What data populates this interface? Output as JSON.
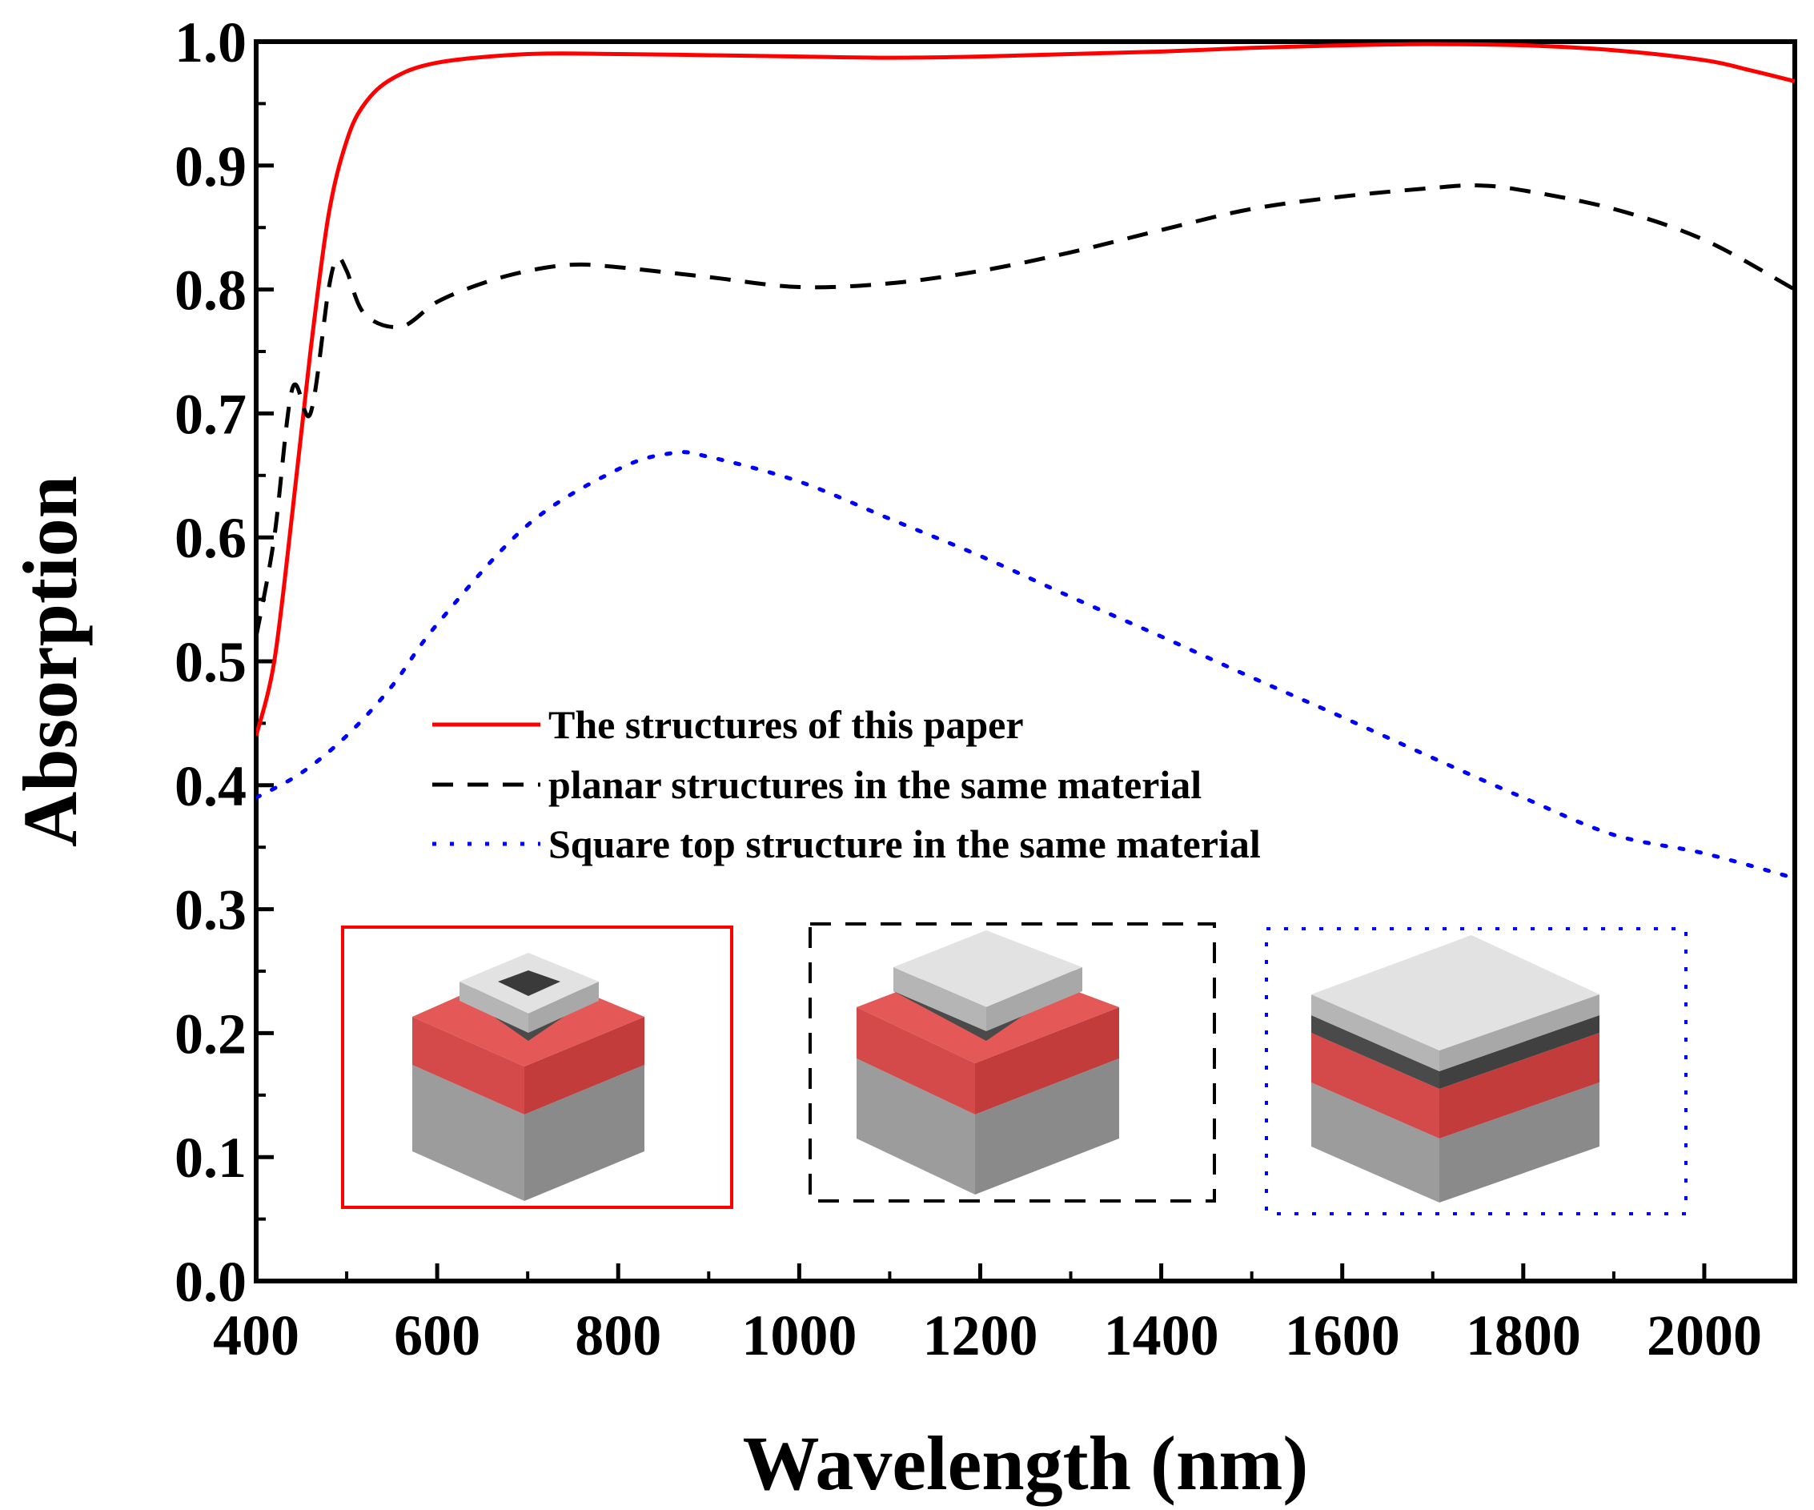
{
  "chart_data": {
    "type": "line",
    "title": "",
    "xlabel": "Wavelength (nm)",
    "ylabel": "Absorption",
    "xlim": [
      400,
      2100
    ],
    "ylim": [
      0.0,
      1.0
    ],
    "xticks": [
      400,
      600,
      800,
      1000,
      1200,
      1400,
      1600,
      1800,
      2000
    ],
    "xtick_labels": [
      "400",
      "600",
      "800",
      "1000",
      "1200",
      "1400",
      "1600",
      "1800",
      "2000"
    ],
    "yticks": [
      0.0,
      0.1,
      0.2,
      0.3,
      0.4,
      0.5,
      0.6,
      0.7,
      0.8,
      0.9,
      1.0
    ],
    "ytick_labels": [
      "0.0",
      "0.1",
      "0.2",
      "0.3",
      "0.4",
      "0.5",
      "0.6",
      "0.7",
      "0.8",
      "0.9",
      "1.0"
    ],
    "grid": false,
    "legend_position": "center-left",
    "series": [
      {
        "name": "The structures of this paper",
        "style": "solid",
        "color": "#ff0000",
        "x": [
          400,
          420,
          440,
          460,
          480,
          500,
          520,
          550,
          600,
          700,
          800,
          900,
          1000,
          1100,
          1200,
          1300,
          1400,
          1500,
          1600,
          1700,
          1800,
          1900,
          2000,
          2050,
          2100
        ],
        "y": [
          0.44,
          0.5,
          0.62,
          0.75,
          0.86,
          0.92,
          0.95,
          0.97,
          0.983,
          0.99,
          0.99,
          0.989,
          0.988,
          0.987,
          0.988,
          0.99,
          0.992,
          0.995,
          0.997,
          0.998,
          0.997,
          0.993,
          0.985,
          0.977,
          0.968
        ]
      },
      {
        "name": "planar structures in the same material",
        "style": "dashed",
        "color": "#000000",
        "x": [
          400,
          420,
          440,
          460,
          480,
          490,
          500,
          520,
          560,
          600,
          650,
          700,
          750,
          800,
          900,
          1000,
          1100,
          1200,
          1300,
          1400,
          1500,
          1600,
          1700,
          1750,
          1800,
          1900,
          2000,
          2100
        ],
        "y": [
          0.52,
          0.6,
          0.72,
          0.7,
          0.8,
          0.825,
          0.815,
          0.78,
          0.77,
          0.79,
          0.805,
          0.815,
          0.82,
          0.818,
          0.81,
          0.802,
          0.805,
          0.815,
          0.83,
          0.848,
          0.865,
          0.875,
          0.882,
          0.884,
          0.88,
          0.865,
          0.84,
          0.8
        ]
      },
      {
        "name": "Square top structure in the same material",
        "style": "dotted",
        "color": "#0000ff",
        "x": [
          400,
          450,
          500,
          550,
          600,
          700,
          800,
          860,
          900,
          1000,
          1100,
          1200,
          1300,
          1400,
          1500,
          1600,
          1700,
          1800,
          1900,
          2000,
          2100
        ],
        "y": [
          0.39,
          0.41,
          0.44,
          0.48,
          0.53,
          0.61,
          0.655,
          0.668,
          0.665,
          0.645,
          0.615,
          0.585,
          0.552,
          0.52,
          0.487,
          0.455,
          0.422,
          0.39,
          0.36,
          0.345,
          0.325
        ]
      }
    ]
  }
}
